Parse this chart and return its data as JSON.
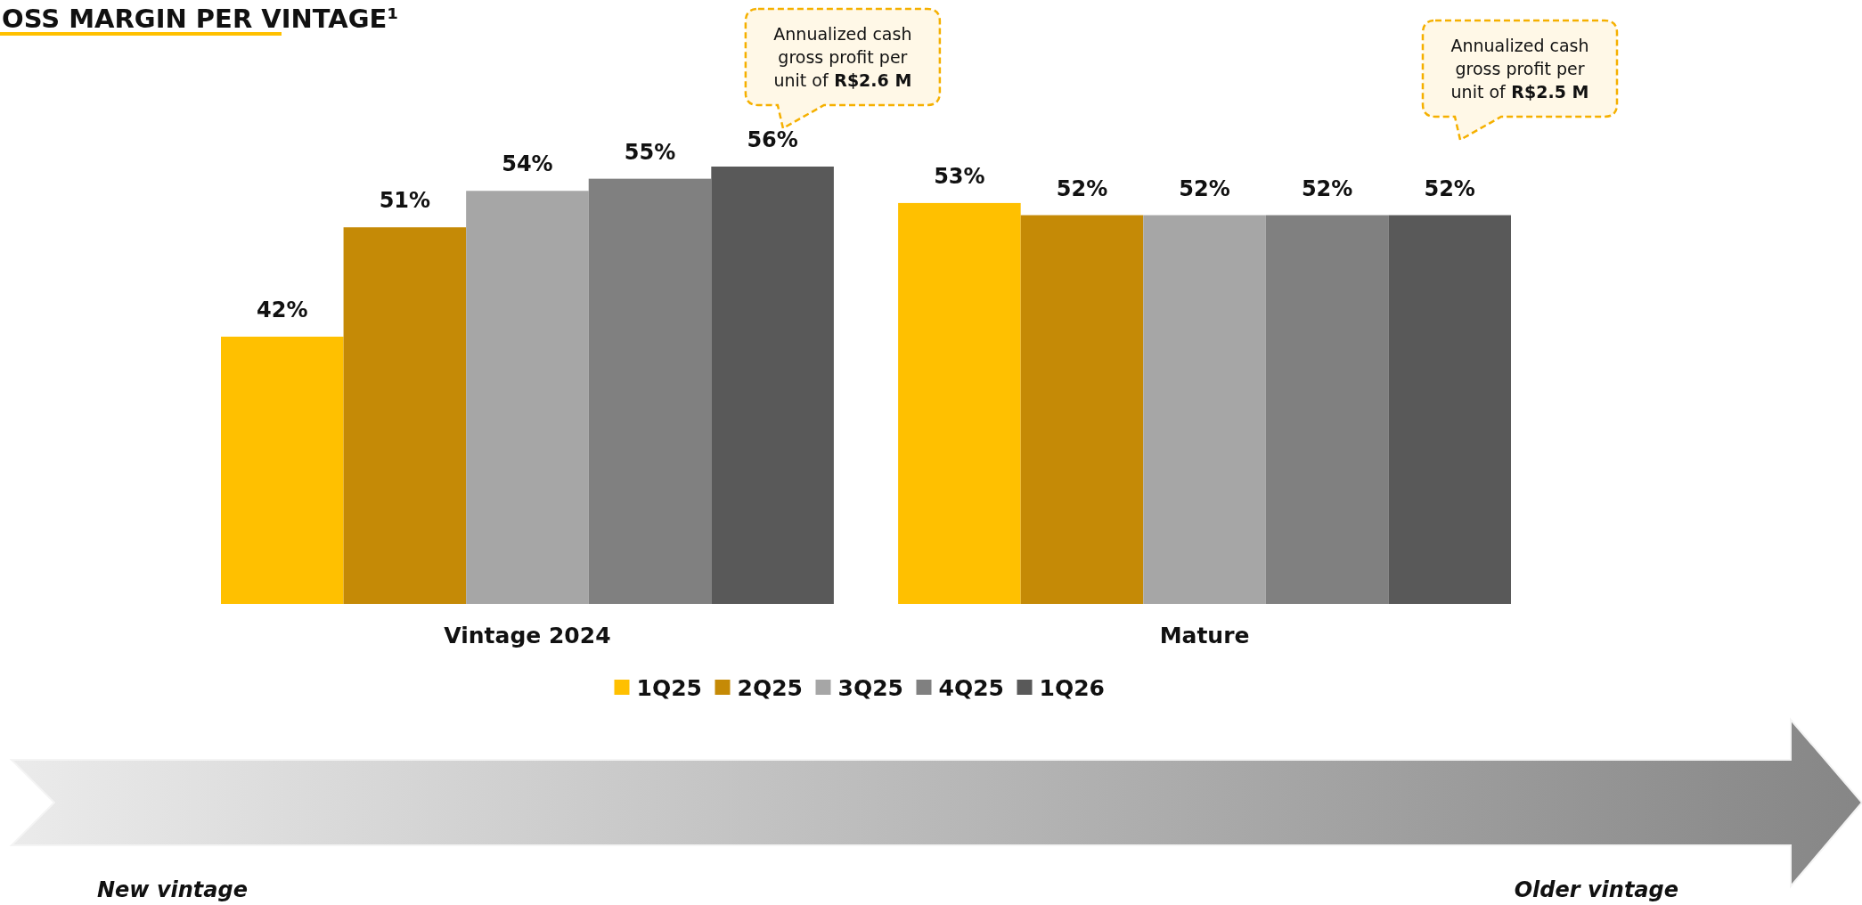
{
  "chart_data": {
    "type": "bar",
    "title": "OSS MARGIN PER VINTAGE¹",
    "categories": [
      "Vintage 2024",
      "Mature"
    ],
    "series": [
      {
        "name": "1Q25",
        "color": "#ffc000",
        "values": [
          42,
          53
        ],
        "value_labels": [
          "42%",
          "53%"
        ]
      },
      {
        "name": "2Q25",
        "color": "#c58a06",
        "values": [
          51,
          52
        ],
        "value_labels": [
          "51%",
          "52%"
        ]
      },
      {
        "name": "3Q25",
        "color": "#a6a6a6",
        "values": [
          54,
          52
        ],
        "value_labels": [
          "54%",
          "52%"
        ]
      },
      {
        "name": "4Q25",
        "color": "#808080",
        "values": [
          55,
          52
        ],
        "value_labels": [
          "55%",
          "52%"
        ]
      },
      {
        "name": "1Q26",
        "color": "#595959",
        "values": [
          56,
          52
        ],
        "value_labels": [
          "56%",
          "52%"
        ]
      }
    ],
    "ylim": [
      20,
      56
    ],
    "legend": "bottom",
    "tick_labels": "x",
    "annotations": [
      "Annualized cash gross profit per unit of R$2.6 M",
      "Annualized cash gross profit per unit of R$2.5 M",
      "New vintage",
      "Older vintage"
    ]
  }
}
